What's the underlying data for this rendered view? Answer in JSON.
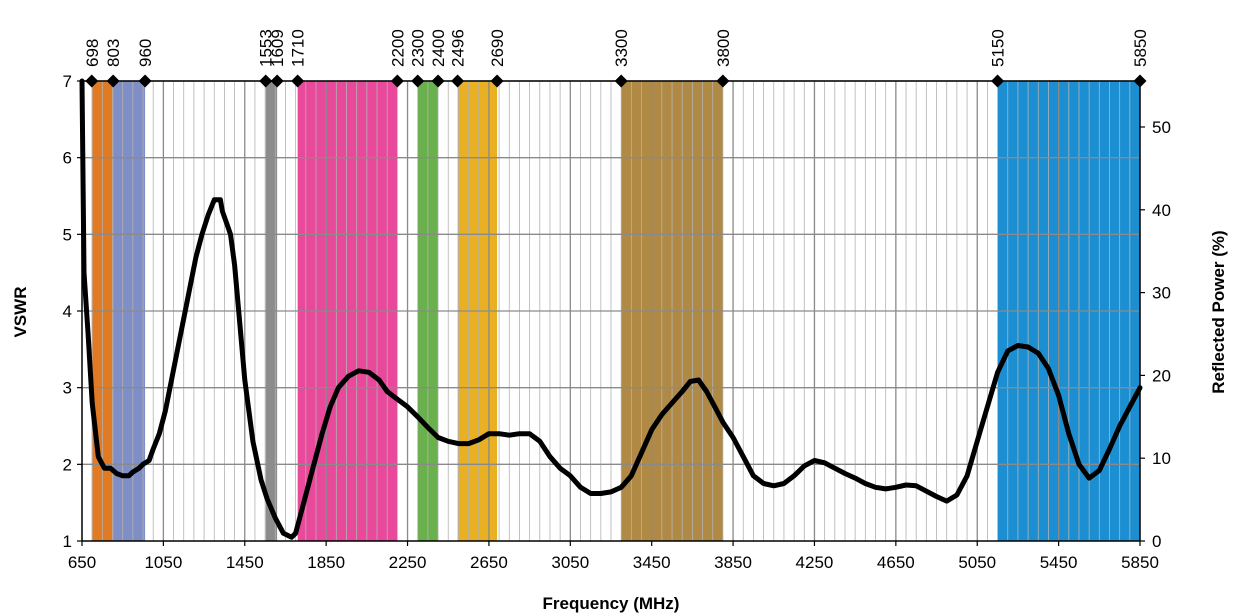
{
  "chart_data": {
    "type": "line",
    "xlabel": "Frequency (MHz)",
    "ylabel": "VSWR",
    "y2label": "Reflected Power (%)",
    "xlim": [
      650,
      5850
    ],
    "ylim": [
      1,
      7
    ],
    "y2lim": [
      0,
      55.555
    ],
    "x_ticks": [
      650,
      1050,
      1450,
      1850,
      2250,
      2650,
      3050,
      3450,
      3850,
      4250,
      4650,
      5050,
      5450,
      5850
    ],
    "x_tick_labels": [
      "650",
      "1050",
      "1450",
      "1850",
      "2250",
      "2650",
      "3050",
      "3450",
      "3850",
      "4250",
      "4650",
      "5050",
      "5450",
      "5850"
    ],
    "y_ticks": [
      1,
      2,
      3,
      4,
      5,
      6,
      7
    ],
    "y_tick_labels": [
      "1",
      "2",
      "3",
      "4",
      "5",
      "6",
      "7"
    ],
    "y2_ticks": [
      0,
      10,
      20,
      30,
      40,
      50
    ],
    "y2_tick_labels": [
      "0",
      "10",
      "20",
      "30",
      "40",
      "50"
    ],
    "top_markers": [
      698,
      803,
      960,
      1553,
      1609,
      1710,
      2200,
      2300,
      2400,
      2496,
      2690,
      3300,
      3800,
      5150,
      5850
    ],
    "top_marker_labels": [
      "698",
      "803",
      "960",
      "1553",
      "1609",
      "1710",
      "2200",
      "2300",
      "2400",
      "2496",
      "2690",
      "3300",
      "3800",
      "5150",
      "5850"
    ],
    "bands": [
      {
        "from": 698,
        "to": 803,
        "color": "#e07b24"
      },
      {
        "from": 803,
        "to": 960,
        "color": "#7f8ec6"
      },
      {
        "from": 1553,
        "to": 1609,
        "color": "#8c8c8c"
      },
      {
        "from": 1710,
        "to": 2200,
        "color": "#e8499a"
      },
      {
        "from": 2300,
        "to": 2400,
        "color": "#6ab04c"
      },
      {
        "from": 2496,
        "to": 2690,
        "color": "#e9b122"
      },
      {
        "from": 3300,
        "to": 3800,
        "color": "#b08a45"
      },
      {
        "from": 5150,
        "to": 5850,
        "color": "#1b8fd2"
      }
    ],
    "grid": true,
    "series": [
      {
        "color": "#000000",
        "x": [
          650,
          660,
          680,
          700,
          730,
          760,
          790,
          820,
          850,
          880,
          900,
          930,
          950,
          980,
          1000,
          1030,
          1060,
          1090,
          1120,
          1150,
          1180,
          1210,
          1240,
          1270,
          1300,
          1330,
          1340,
          1360,
          1380,
          1400,
          1420,
          1450,
          1490,
          1530,
          1560,
          1600,
          1640,
          1680,
          1700,
          1720,
          1750,
          1790,
          1830,
          1870,
          1910,
          1960,
          2010,
          2060,
          2110,
          2150,
          2200,
          2250,
          2300,
          2350,
          2400,
          2450,
          2500,
          2550,
          2600,
          2650,
          2700,
          2750,
          2800,
          2850,
          2900,
          2950,
          3000,
          3050,
          3100,
          3150,
          3200,
          3250,
          3300,
          3350,
          3400,
          3450,
          3500,
          3550,
          3600,
          3640,
          3680,
          3720,
          3760,
          3800,
          3850,
          3900,
          3950,
          4000,
          4050,
          4100,
          4150,
          4200,
          4250,
          4300,
          4350,
          4400,
          4450,
          4500,
          4550,
          4600,
          4650,
          4700,
          4750,
          4800,
          4850,
          4900,
          4950,
          5000,
          5050,
          5100,
          5150,
          5200,
          5250,
          5300,
          5350,
          5400,
          5450,
          5500,
          5550,
          5600,
          5650,
          5700,
          5750,
          5800,
          5850
        ],
        "values": [
          7.0,
          4.5,
          3.7,
          2.8,
          2.1,
          1.95,
          1.95,
          1.88,
          1.85,
          1.85,
          1.9,
          1.95,
          2.0,
          2.05,
          2.2,
          2.4,
          2.7,
          3.1,
          3.5,
          3.9,
          4.3,
          4.7,
          5.0,
          5.25,
          5.45,
          5.45,
          5.3,
          5.15,
          5.0,
          4.6,
          4.0,
          3.1,
          2.3,
          1.8,
          1.55,
          1.3,
          1.1,
          1.05,
          1.1,
          1.3,
          1.6,
          2.0,
          2.4,
          2.75,
          3.0,
          3.15,
          3.22,
          3.2,
          3.1,
          2.95,
          2.85,
          2.75,
          2.62,
          2.48,
          2.35,
          2.3,
          2.27,
          2.27,
          2.32,
          2.4,
          2.4,
          2.38,
          2.4,
          2.4,
          2.3,
          2.1,
          1.95,
          1.85,
          1.7,
          1.62,
          1.62,
          1.64,
          1.7,
          1.85,
          2.15,
          2.45,
          2.65,
          2.8,
          2.95,
          3.08,
          3.1,
          2.95,
          2.75,
          2.55,
          2.35,
          2.1,
          1.85,
          1.75,
          1.72,
          1.75,
          1.85,
          1.98,
          2.05,
          2.02,
          1.95,
          1.88,
          1.82,
          1.75,
          1.7,
          1.68,
          1.7,
          1.73,
          1.72,
          1.65,
          1.58,
          1.52,
          1.6,
          1.85,
          2.3,
          2.75,
          3.2,
          3.48,
          3.55,
          3.53,
          3.45,
          3.25,
          2.9,
          2.4,
          2.0,
          1.82,
          1.92,
          2.2,
          2.5,
          2.75,
          3.0
        ]
      }
    ]
  }
}
